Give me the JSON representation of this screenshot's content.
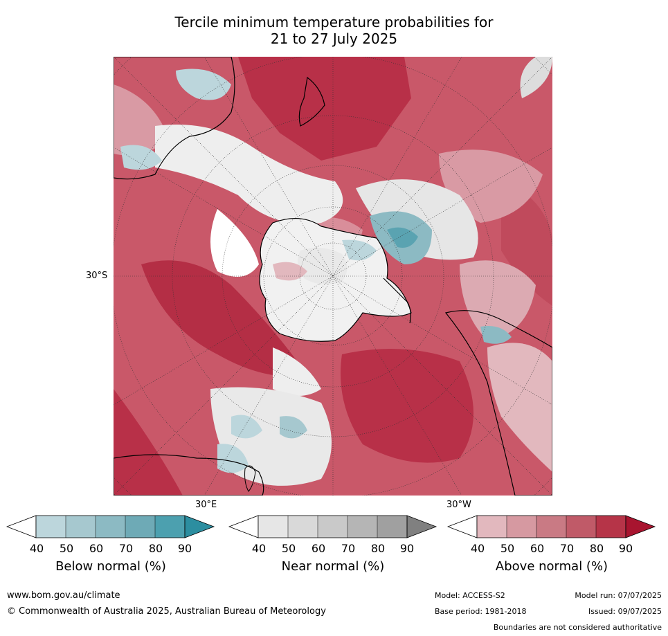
{
  "title": {
    "line1": "Tercile minimum temperature probabilities for",
    "line2": "21 to 27 July 2025"
  },
  "map_labels": {
    "lat_30s": "30°S",
    "lon_30e": "30°E",
    "lon_30w": "30°W"
  },
  "legends": [
    {
      "label": "Below normal (%)",
      "ticks": [
        "40",
        "50",
        "60",
        "70",
        "80",
        "90"
      ],
      "colors": [
        "#ffffff",
        "#bcd6dc",
        "#a6c8cf",
        "#8cbac3",
        "#6eaab6",
        "#4ca0af",
        "#2c8ea0"
      ]
    },
    {
      "label": "Near normal (%)",
      "ticks": [
        "40",
        "50",
        "60",
        "70",
        "80",
        "90"
      ],
      "colors": [
        "#ffffff",
        "#e6e6e6",
        "#d9d9d9",
        "#c9c9c9",
        "#b5b5b5",
        "#a0a0a0",
        "#808080"
      ]
    },
    {
      "label": "Above normal (%)",
      "ticks": [
        "40",
        "50",
        "60",
        "70",
        "80",
        "90"
      ],
      "colors": [
        "#ffffff",
        "#e2b8be",
        "#d699a1",
        "#c97a84",
        "#c05a68",
        "#b63448",
        "#a8142f"
      ]
    }
  ],
  "footer": {
    "website": "www.bom.gov.au/climate",
    "copyright": "© Commonwealth of Australia 2025, Australian Bureau of Meteorology",
    "model": "Model: ACCESS-S2",
    "model_run": "Model run: 07/07/2025",
    "base_period": "Base period: 1981-2018",
    "issued": "Issued: 09/07/2025",
    "disclaimer": "Boundaries are not considered authoritative"
  }
}
